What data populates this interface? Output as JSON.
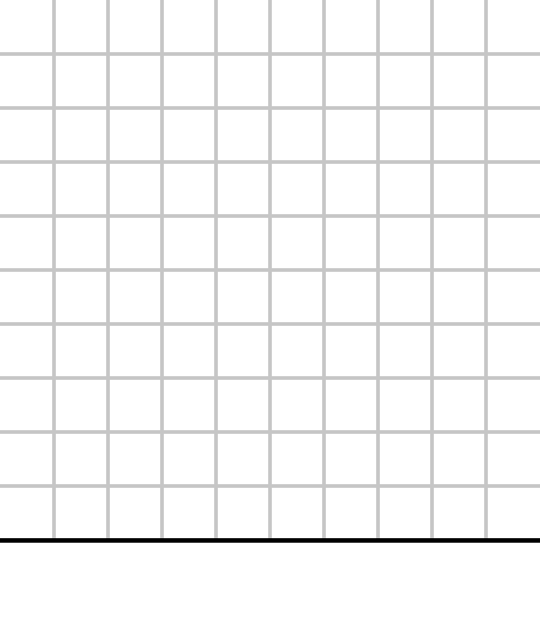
{
  "board": {
    "columns": 10,
    "rows": 10,
    "grid_color": "#c6c6c6",
    "background_color": "#ffffff",
    "baseline_color": "#000000",
    "cells": []
  }
}
